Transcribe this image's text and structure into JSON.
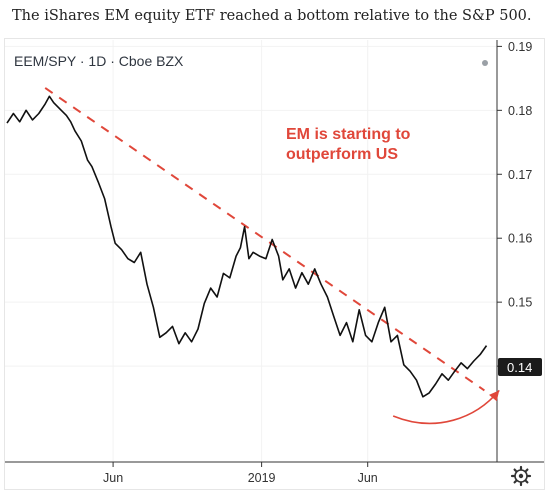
{
  "caption": "The iShares EM equity ETF reached a bottom relative to the S&P 500.",
  "chart_header": {
    "symbol_label": "EEM/SPY · 1D · Cboe BZX"
  },
  "annotation": {
    "line1": "EM is starting to",
    "line2": "outperform US"
  },
  "last_price_badge": "0.14",
  "icons": {
    "settings": "gear-icon",
    "status": "status-dot-icon"
  },
  "colors": {
    "price_line": "#111111",
    "trend_line": "#e0473a",
    "annotation_text": "#e0473a",
    "badge_bg": "#1b1b1b",
    "grid": "#f2f2f2",
    "axis_text": "#333333"
  },
  "chart_data": {
    "type": "line",
    "title": "EEM/SPY · 1D · Cboe BZX",
    "xlabel": "",
    "ylabel": "",
    "x_tick_labels": [
      "Jun",
      "2019",
      "Jun"
    ],
    "x_ticks_month_index": [
      5,
      12,
      17
    ],
    "y_tick_labels": [
      "0.19",
      "0.18",
      "0.17",
      "0.16",
      "0.15",
      "0.14"
    ],
    "y_ticks": [
      0.19,
      0.18,
      0.17,
      0.16,
      0.15,
      0.14
    ],
    "ylim": [
      0.125,
      0.191
    ],
    "xlim_month_index": [
      0,
      23
    ],
    "x_note": "month index from Jan 2018 (0) to Dec 2019 (23), estimated",
    "series": [
      {
        "values": [
          [
            0.0,
            0.178
          ],
          [
            0.3,
            0.1795
          ],
          [
            0.6,
            0.1782
          ],
          [
            0.9,
            0.18
          ],
          [
            1.2,
            0.1785
          ],
          [
            1.5,
            0.1795
          ],
          [
            1.8,
            0.181
          ],
          [
            2.0,
            0.1822
          ],
          [
            2.2,
            0.1812
          ],
          [
            2.5,
            0.1802
          ],
          [
            2.8,
            0.1792
          ],
          [
            3.0,
            0.1782
          ],
          [
            3.2,
            0.1768
          ],
          [
            3.5,
            0.1752
          ],
          [
            3.8,
            0.1722
          ],
          [
            4.0,
            0.1712
          ],
          [
            4.3,
            0.1688
          ],
          [
            4.6,
            0.1662
          ],
          [
            4.9,
            0.1618
          ],
          [
            5.1,
            0.1592
          ],
          [
            5.4,
            0.1582
          ],
          [
            5.7,
            0.1568
          ],
          [
            6.0,
            0.1562
          ],
          [
            6.3,
            0.1578
          ],
          [
            6.6,
            0.1528
          ],
          [
            6.9,
            0.1492
          ],
          [
            7.2,
            0.1445
          ],
          [
            7.5,
            0.1452
          ],
          [
            7.8,
            0.1462
          ],
          [
            8.1,
            0.1435
          ],
          [
            8.4,
            0.1452
          ],
          [
            8.7,
            0.1438
          ],
          [
            9.0,
            0.1458
          ],
          [
            9.3,
            0.1498
          ],
          [
            9.6,
            0.1522
          ],
          [
            9.9,
            0.1508
          ],
          [
            10.2,
            0.1545
          ],
          [
            10.5,
            0.1538
          ],
          [
            10.8,
            0.1572
          ],
          [
            11.0,
            0.1585
          ],
          [
            11.2,
            0.1618
          ],
          [
            11.4,
            0.1568
          ],
          [
            11.6,
            0.1578
          ],
          [
            11.9,
            0.1572
          ],
          [
            12.2,
            0.1568
          ],
          [
            12.5,
            0.1598
          ],
          [
            12.8,
            0.1572
          ],
          [
            13.0,
            0.1535
          ],
          [
            13.3,
            0.1552
          ],
          [
            13.6,
            0.1522
          ],
          [
            13.9,
            0.1546
          ],
          [
            14.2,
            0.1528
          ],
          [
            14.5,
            0.1552
          ],
          [
            14.8,
            0.1528
          ],
          [
            15.1,
            0.1508
          ],
          [
            15.4,
            0.1478
          ],
          [
            15.7,
            0.1448
          ],
          [
            16.0,
            0.1468
          ],
          [
            16.3,
            0.1438
          ],
          [
            16.6,
            0.1488
          ],
          [
            16.9,
            0.1448
          ],
          [
            17.2,
            0.1438
          ],
          [
            17.5,
            0.1468
          ],
          [
            17.8,
            0.1492
          ],
          [
            18.1,
            0.1438
          ],
          [
            18.4,
            0.1448
          ],
          [
            18.7,
            0.1402
          ],
          [
            19.0,
            0.1392
          ],
          [
            19.3,
            0.1378
          ],
          [
            19.6,
            0.1352
          ],
          [
            19.9,
            0.1358
          ],
          [
            20.2,
            0.1372
          ],
          [
            20.5,
            0.1388
          ],
          [
            20.8,
            0.1378
          ],
          [
            21.1,
            0.1392
          ],
          [
            21.4,
            0.1405
          ],
          [
            21.7,
            0.1396
          ],
          [
            22.0,
            0.1408
          ],
          [
            22.3,
            0.1418
          ],
          [
            22.6,
            0.1432
          ]
        ]
      }
    ],
    "trend_line": {
      "from": [
        1.8,
        0.1835
      ],
      "to": [
        22.5,
        0.1362
      ],
      "style": "dashed"
    },
    "curve_arrow": {
      "points": [
        [
          18.2,
          0.1322
        ],
        [
          20.2,
          0.1295
        ],
        [
          22.1,
          0.1318
        ],
        [
          23.2,
          0.1362
        ]
      ],
      "style": "solid-arrow"
    },
    "grid": true,
    "legend": "none"
  }
}
